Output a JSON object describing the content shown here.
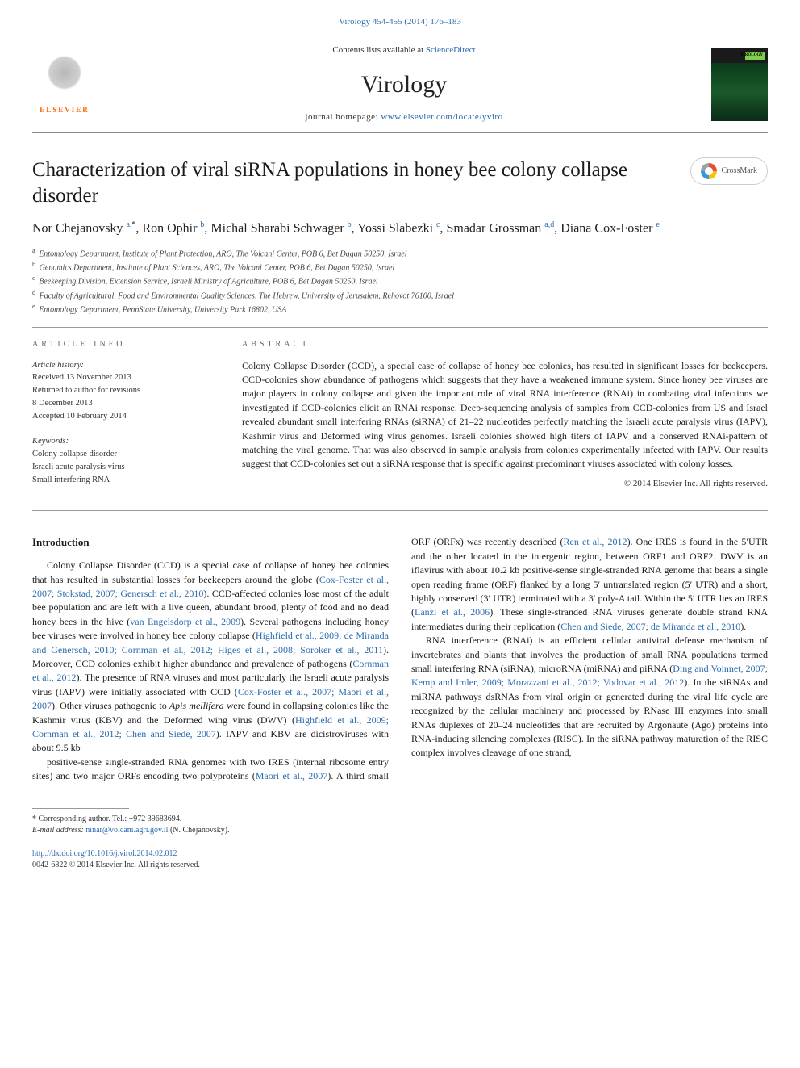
{
  "header": {
    "top_citation_link": "Virology 454-455 (2014) 176–183",
    "contents_prefix": "Contents lists available at ",
    "contents_link": "ScienceDirect",
    "journal_name": "Virology",
    "homepage_prefix": "journal homepage: ",
    "homepage_url": "www.elsevier.com/locate/yviro",
    "elsevier_label": "ELSEVIER",
    "cover_label": "VIROLOGY"
  },
  "crossmark_label": "CrossMark",
  "title": "Characterization of viral siRNA populations in honey bee colony collapse disorder",
  "authors_html": "Nor Chejanovsky <sup>a,</sup><sup class=\"ast\">*</sup>, Ron Ophir <sup>b</sup>, Michal Sharabi Schwager <sup>b</sup>, Yossi Slabezki <sup>c</sup>, Smadar Grossman <sup>a,d</sup>, Diana Cox-Foster <sup>e</sup>",
  "affiliations": [
    {
      "key": "a",
      "text": "Entomology Department, Institute of Plant Protection, ARO, The Volcani Center, POB 6, Bet Dagan 50250, Israel"
    },
    {
      "key": "b",
      "text": "Genomics Department, Institute of Plant Sciences, ARO, The Volcani Center, POB 6, Bet Dagan 50250, Israel"
    },
    {
      "key": "c",
      "text": "Beekeeping Division, Extension Service, Israeli Ministry of Agriculture, POB 6, Bet Dagan 50250, Israel"
    },
    {
      "key": "d",
      "text": "Faculty of Agricultural, Food and Environmental Quality Sciences, The Hebrew, University of Jerusalem, Rehovot 76100, Israel"
    },
    {
      "key": "e",
      "text": "Entomology Department, PennState University, University Park 16802, USA"
    }
  ],
  "article_info": {
    "label": "ARTICLE INFO",
    "history_label": "Article history:",
    "history": [
      "Received 13 November 2013",
      "Returned to author for revisions",
      "8 December 2013",
      "Accepted 10 February 2014"
    ],
    "keywords_label": "Keywords:",
    "keywords": [
      "Colony collapse disorder",
      "Israeli acute paralysis virus",
      "Small interfering RNA"
    ]
  },
  "abstract": {
    "label": "ABSTRACT",
    "text": "Colony Collapse Disorder (CCD), a special case of collapse of honey bee colonies, has resulted in significant losses for beekeepers. CCD-colonies show abundance of pathogens which suggests that they have a weakened immune system. Since honey bee viruses are major players in colony collapse and given the important role of viral RNA interference (RNAi) in combating viral infections we investigated if CCD-colonies elicit an RNAi response. Deep-sequencing analysis of samples from CCD-colonies from US and Israel revealed abundant small interfering RNAs (siRNA) of 21–22 nucleotides perfectly matching the Israeli acute paralysis virus (IAPV), Kashmir virus and Deformed wing virus genomes. Israeli colonies showed high titers of IAPV and a conserved RNAi-pattern of matching the viral genome. That was also observed in sample analysis from colonies experimentally infected with IAPV. Our results suggest that CCD-colonies set out a siRNA response that is specific against predominant viruses associated with colony losses.",
    "copyright": "© 2014 Elsevier Inc. All rights reserved."
  },
  "introduction": {
    "heading": "Introduction",
    "para1_html": "Colony Collapse Disorder (CCD) is a special case of collapse of honey bee colonies that has resulted in substantial losses for beekeepers around the globe (<span class=\"cite\">Cox-Foster et al., 2007; Stokstad, 2007; Genersch et al., 2010</span>). CCD-affected colonies lose most of the adult bee population and are left with a live queen, abundant brood, plenty of food and no dead honey bees in the hive (<span class=\"cite\">van Engelsdorp et al., 2009</span>). Several pathogens including honey bee viruses were involved in honey bee colony collapse (<span class=\"cite\">Highfield et al., 2009; de Miranda and Genersch, 2010; Cornman et al., 2012; Higes et al., 2008; Soroker et al., 2011</span>). Moreover, CCD colonies exhibit higher abundance and prevalence of pathogens (<span class=\"cite\">Cornman et al., 2012</span>). The presence of RNA viruses and most particularly the Israeli acute paralysis virus (IAPV) were initially associated with CCD (<span class=\"cite\">Cox-Foster et al., 2007; Maori et al., 2007</span>). Other viruses pathogenic to <span class=\"taxon\">Apis mellifera</span> were found in collapsing colonies like the Kashmir virus (KBV) and the Deformed wing virus (DWV) (<span class=\"cite\">Highfield et al., 2009; Cornman et al., 2012; Chen and Siede, 2007</span>). IAPV and KBV are dicistroviruses with about 9.5 kb",
    "para2_html": "positive-sense single-stranded RNA genomes with two IRES (internal ribosome entry sites) and two major ORFs encoding two polyproteins (<span class=\"cite\">Maori et al., 2007</span>). A third small ORF (ORFx) was recently described (<span class=\"cite\">Ren et al., 2012</span>). One IRES is found in the 5′UTR and the other located in the intergenic region, between ORF1 and ORF2. DWV is an iflavirus with about 10.2 kb positive-sense single-stranded RNA genome that bears a single open reading frame (ORF) flanked by a long 5′ untranslated region (5′ UTR) and a short, highly conserved (3′ UTR) terminated with a 3′ poly-A tail. Within the 5′ UTR lies an IRES (<span class=\"cite\">Lanzi et al., 2006</span>). These single-stranded RNA viruses generate double strand RNA intermediates during their replication (<span class=\"cite\">Chen and Siede, 2007; de Miranda et al., 2010</span>).",
    "para3_html": "RNA interference (RNAi) is an efficient cellular antiviral defense mechanism of invertebrates and plants that involves the production of small RNA populations termed small interfering RNA (siRNA), microRNA (miRNA) and piRNA (<span class=\"cite\">Ding and Voinnet, 2007; Kemp and Imler, 2009; Morazzani et al., 2012; Vodovar et al., 2012</span>). In the siRNAs and miRNA pathways dsRNAs from viral origin or generated during the viral life cycle are recognized by the cellular machinery and processed by RNase III enzymes into small RNAs duplexes of 20–24 nucleotides that are recruited by Argonaute (Ago) proteins into RNA-inducing silencing complexes (RISC). In the siRNA pathway maturation of the RISC complex involves cleavage of one strand,"
  },
  "footer": {
    "corr_line": "* Corresponding author. Tel.: +972 39683694.",
    "email_label": "E-mail address: ",
    "email": "ninar@volcani.agri.gov.il",
    "email_suffix": " (N. Chejanovsky).",
    "doi": "http://dx.doi.org/10.1016/j.virol.2014.02.012",
    "issn_line": "0042-6822 © 2014 Elsevier Inc. All rights reserved."
  },
  "colors": {
    "link": "#2b6cb0",
    "text": "#1a1a1a",
    "muted": "#666666",
    "elsevier_orange": "#ff6600"
  }
}
